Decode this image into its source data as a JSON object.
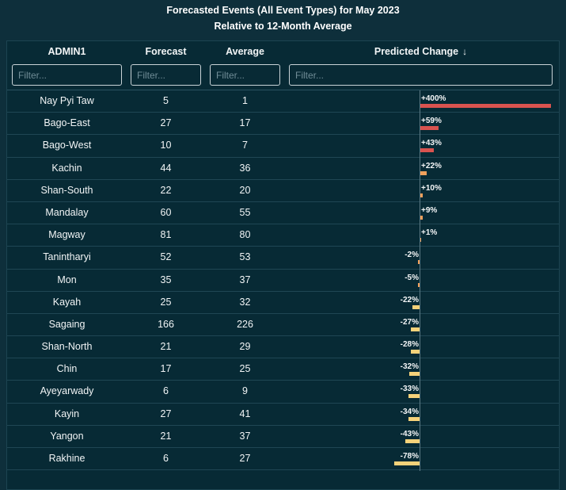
{
  "title": {
    "line1": "Forecasted Events (All Event Types) for May 2023",
    "line2": "Relative to 12-Month Average"
  },
  "columns": {
    "admin1": "ADMIN1",
    "forecast": "Forecast",
    "average": "Average",
    "change": "Predicted Change",
    "sort_glyph": "↓"
  },
  "filters": {
    "placeholder": "Filter..."
  },
  "colors": {
    "background": "#0e2f3b",
    "panel": "#072a35",
    "increase_large": "#d9534f",
    "increase_small": "#f0a05c",
    "decrease": "#f5d27a"
  },
  "rows": [
    {
      "admin1": "Nay Pyi Taw",
      "forecast": "5",
      "average": "1",
      "change_label": "+400%",
      "change": 400
    },
    {
      "admin1": "Bago-East",
      "forecast": "27",
      "average": "17",
      "change_label": "+59%",
      "change": 59
    },
    {
      "admin1": "Bago-West",
      "forecast": "10",
      "average": "7",
      "change_label": "+43%",
      "change": 43
    },
    {
      "admin1": "Kachin",
      "forecast": "44",
      "average": "36",
      "change_label": "+22%",
      "change": 22
    },
    {
      "admin1": "Shan-South",
      "forecast": "22",
      "average": "20",
      "change_label": "+10%",
      "change": 10
    },
    {
      "admin1": "Mandalay",
      "forecast": "60",
      "average": "55",
      "change_label": "+9%",
      "change": 9
    },
    {
      "admin1": "Magway",
      "forecast": "81",
      "average": "80",
      "change_label": "+1%",
      "change": 1
    },
    {
      "admin1": "Tanintharyi",
      "forecast": "52",
      "average": "53",
      "change_label": "-2%",
      "change": -2
    },
    {
      "admin1": "Mon",
      "forecast": "35",
      "average": "37",
      "change_label": "-5%",
      "change": -5
    },
    {
      "admin1": "Kayah",
      "forecast": "25",
      "average": "32",
      "change_label": "-22%",
      "change": -22
    },
    {
      "admin1": "Sagaing",
      "forecast": "166",
      "average": "226",
      "change_label": "-27%",
      "change": -27
    },
    {
      "admin1": "Shan-North",
      "forecast": "21",
      "average": "29",
      "change_label": "-28%",
      "change": -28
    },
    {
      "admin1": "Chin",
      "forecast": "17",
      "average": "25",
      "change_label": "-32%",
      "change": -32
    },
    {
      "admin1": "Ayeyarwady",
      "forecast": "6",
      "average": "9",
      "change_label": "-33%",
      "change": -33
    },
    {
      "admin1": "Kayin",
      "forecast": "27",
      "average": "41",
      "change_label": "-34%",
      "change": -34
    },
    {
      "admin1": "Yangon",
      "forecast": "21",
      "average": "37",
      "change_label": "-43%",
      "change": -43
    },
    {
      "admin1": "Rakhine",
      "forecast": "6",
      "average": "27",
      "change_label": "-78%",
      "change": -78
    }
  ]
}
